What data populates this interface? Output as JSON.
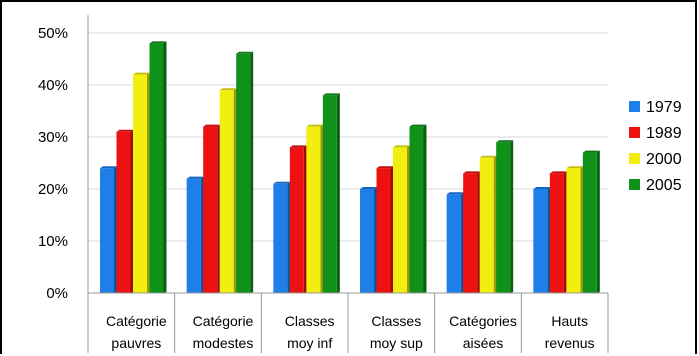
{
  "chart_data": {
    "type": "bar",
    "title": "",
    "xlabel": "",
    "ylabel": "",
    "categories": [
      [
        "Catégorie",
        "pauvres"
      ],
      [
        "Catégorie",
        "modestes"
      ],
      [
        "Classes",
        "moy inf"
      ],
      [
        "Classes",
        "moy sup"
      ],
      [
        "Catégories",
        "aisées"
      ],
      [
        "Hauts",
        "revenus"
      ]
    ],
    "series": [
      {
        "name": "1979",
        "color": "#1e7fe8",
        "values": [
          24,
          22,
          21,
          20,
          19,
          20
        ]
      },
      {
        "name": "1989",
        "color": "#ee1111",
        "values": [
          31,
          32,
          28,
          24,
          23,
          23
        ]
      },
      {
        "name": "2000",
        "color": "#f2ee10",
        "values": [
          42,
          39,
          32,
          28,
          26,
          24
        ]
      },
      {
        "name": "2005",
        "color": "#10921a",
        "values": [
          48,
          46,
          38,
          32,
          29,
          27
        ]
      }
    ],
    "ylim": [
      0,
      50
    ],
    "yticks": [
      "0%",
      "10%",
      "20%",
      "30%",
      "40%",
      "50%"
    ],
    "grid": true,
    "legend_position": "right"
  }
}
